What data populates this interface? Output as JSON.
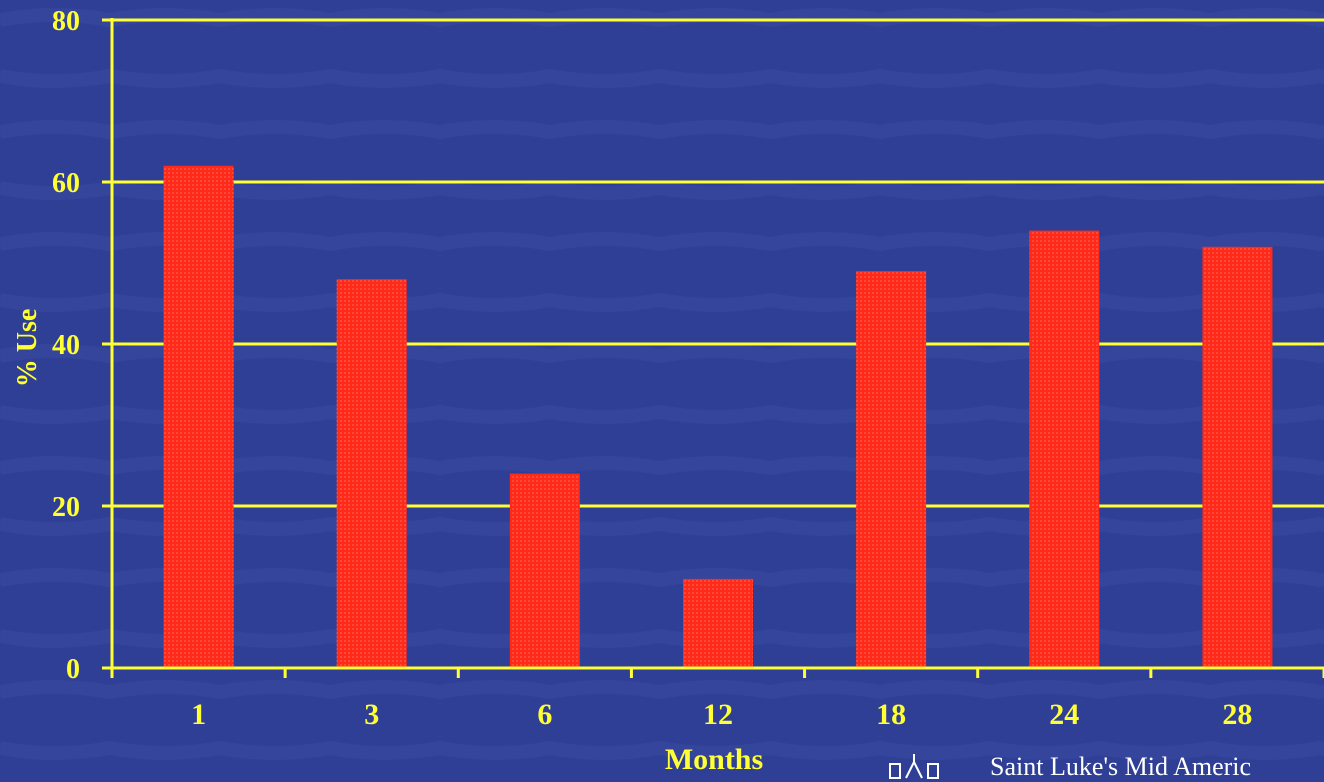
{
  "chart_data": {
    "type": "bar",
    "categories": [
      "1",
      "3",
      "6",
      "12",
      "18",
      "24",
      "28"
    ],
    "values": [
      62,
      48,
      24,
      11,
      49,
      54,
      52
    ],
    "xlabel": "Months",
    "ylabel": "% Use",
    "ylim": [
      0,
      80
    ],
    "yticks": [
      "0",
      "20",
      "40",
      "60",
      "80"
    ],
    "grid": true,
    "colors": {
      "background": "#2f3f95",
      "bar": "#ff2a1a",
      "axis": "#ffff33",
      "text": "#ffff33"
    }
  },
  "footer": {
    "logo_text": "Saint Luke's Mid Americ"
  }
}
